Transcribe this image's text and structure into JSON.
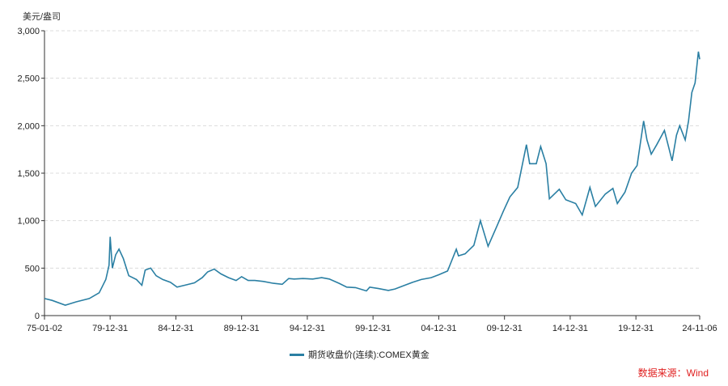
{
  "chart_data": {
    "type": "line",
    "title": "",
    "ylabel": "美元/盎司",
    "xlabel": "",
    "ylim": [
      0,
      3000
    ],
    "xlim": [
      "1975-01-02",
      "2024-11-06"
    ],
    "y_ticks": [
      0,
      500,
      1000,
      1500,
      2000,
      2500,
      3000
    ],
    "y_tick_labels": [
      "0",
      "500",
      "1,000",
      "1,500",
      "2,000",
      "2,500",
      "3,000"
    ],
    "x_ticks": [
      "1975-01-02",
      "1979-12-31",
      "1984-12-31",
      "1989-12-31",
      "1994-12-31",
      "1999-12-31",
      "2004-12-31",
      "2009-12-31",
      "2014-12-31",
      "2019-12-31",
      "2024-11-06"
    ],
    "x_tick_labels": [
      "75-01-02",
      "79-12-31",
      "84-12-31",
      "89-12-31",
      "94-12-31",
      "99-12-31",
      "04-12-31",
      "09-12-31",
      "14-12-31",
      "19-12-31",
      "24-11-06"
    ],
    "grid": "horizontal dashed",
    "legend_position": "bottom",
    "series": [
      {
        "name": "期货收盘价(连续):COMEX黄金",
        "color": "#2a7fa3",
        "x": [
          "1975-01",
          "1975-08",
          "1976-08",
          "1977-06",
          "1978-06",
          "1979-03",
          "1979-09",
          "1979-12",
          "1980-01",
          "1980-03",
          "1980-06",
          "1980-09",
          "1981-01",
          "1981-06",
          "1982-01",
          "1982-06",
          "1982-09",
          "1983-02",
          "1983-07",
          "1984-01",
          "1984-08",
          "1985-02",
          "1985-09",
          "1986-06",
          "1987-01",
          "1987-06",
          "1987-12",
          "1988-06",
          "1989-01",
          "1989-08",
          "1990-01",
          "1990-07",
          "1991-01",
          "1991-09",
          "1992-06",
          "1993-02",
          "1993-08",
          "1994-01",
          "1994-09",
          "1995-06",
          "1996-02",
          "1996-09",
          "1997-06",
          "1998-01",
          "1998-09",
          "1999-07",
          "1999-10",
          "2000-06",
          "2001-03",
          "2001-09",
          "2002-06",
          "2003-01",
          "2003-09",
          "2004-06",
          "2005-01",
          "2005-09",
          "2006-05",
          "2006-07",
          "2007-01",
          "2007-09",
          "2008-03",
          "2008-10",
          "2009-06",
          "2009-12",
          "2010-06",
          "2011-01",
          "2011-09",
          "2011-12",
          "2012-06",
          "2012-10",
          "2013-03",
          "2013-06",
          "2014-03",
          "2014-09",
          "2015-06",
          "2015-12",
          "2016-07",
          "2016-12",
          "2017-09",
          "2018-04",
          "2018-08",
          "2019-03",
          "2019-09",
          "2020-02",
          "2020-08",
          "2020-11",
          "2021-03",
          "2021-08",
          "2022-03",
          "2022-10",
          "2023-02",
          "2023-05",
          "2023-10",
          "2024-01",
          "2024-04",
          "2024-07",
          "2024-10",
          "2024-11-06"
        ],
        "values": [
          180,
          160,
          110,
          145,
          180,
          240,
          380,
          530,
          830,
          500,
          640,
          700,
          600,
          420,
          380,
          320,
          480,
          500,
          420,
          380,
          350,
          300,
          320,
          345,
          400,
          460,
          490,
          440,
          400,
          370,
          410,
          370,
          370,
          360,
          340,
          330,
          390,
          385,
          390,
          385,
          400,
          385,
          340,
          300,
          295,
          260,
          300,
          285,
          265,
          280,
          320,
          350,
          380,
          400,
          430,
          470,
          700,
          630,
          650,
          740,
          1000,
          730,
          940,
          1100,
          1250,
          1350,
          1800,
          1600,
          1600,
          1780,
          1600,
          1230,
          1330,
          1220,
          1180,
          1060,
          1350,
          1150,
          1280,
          1340,
          1180,
          1300,
          1500,
          1580,
          2050,
          1850,
          1700,
          1800,
          1950,
          1630,
          1900,
          2000,
          1850,
          2050,
          2350,
          2450,
          2780,
          2700
        ]
      }
    ]
  },
  "source": "数据来源：Wind"
}
